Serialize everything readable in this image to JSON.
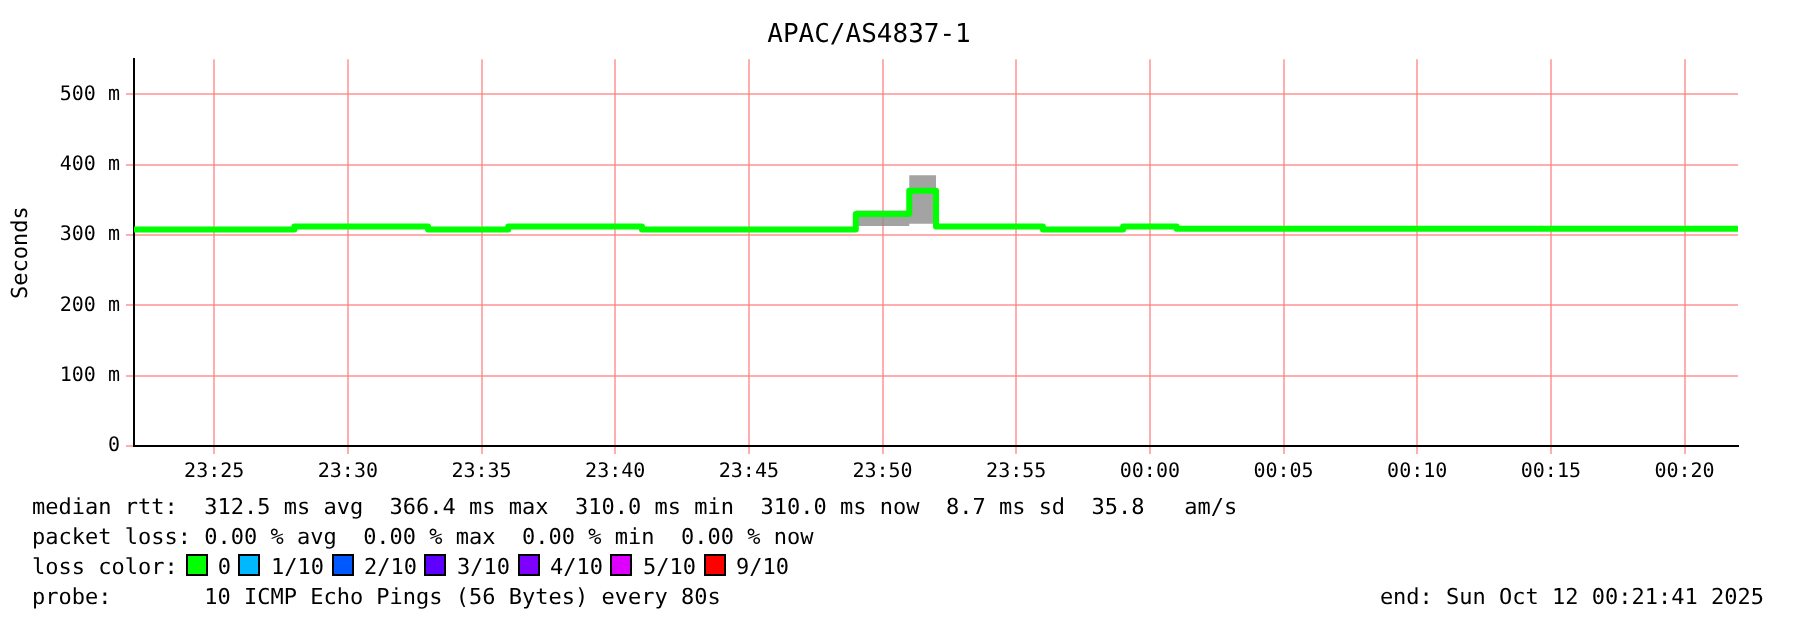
{
  "chart_data": {
    "type": "line",
    "title": "APAC/AS4837-1",
    "ylabel": "Seconds",
    "x": [
      "2025-10-11T23:22",
      "2025-10-11T23:28",
      "2025-10-11T23:28",
      "2025-10-11T23:33",
      "2025-10-11T23:33",
      "2025-10-11T23:36",
      "2025-10-11T23:36",
      "2025-10-11T23:41",
      "2025-10-11T23:41",
      "2025-10-11T23:49",
      "2025-10-11T23:49",
      "2025-10-11T23:51",
      "2025-10-11T23:51",
      "2025-10-11T23:52",
      "2025-10-11T23:52",
      "2025-10-11T23:56",
      "2025-10-11T23:56",
      "2025-10-11T23:59",
      "2025-10-11T23:59",
      "2025-10-12T00:01",
      "2025-10-12T00:01",
      "2025-10-12T00:22"
    ],
    "series": [
      {
        "color": "#00ff00",
        "values": [
          308,
          308,
          312,
          312,
          308,
          308,
          312,
          312,
          308,
          308,
          330,
          330,
          363,
          363,
          312,
          312,
          308,
          308,
          312,
          312,
          309,
          309
        ],
        "lower": [
          null,
          null,
          null,
          null,
          null,
          null,
          null,
          null,
          null,
          null,
          313,
          313,
          316,
          316,
          null,
          null,
          null,
          null,
          null,
          null,
          null,
          null
        ],
        "upper": [
          null,
          null,
          null,
          null,
          null,
          null,
          null,
          null,
          null,
          null,
          335,
          335,
          385,
          385,
          null,
          null,
          null,
          null,
          null,
          null,
          null,
          null
        ]
      }
    ],
    "xlim": [
      "2025-10-11T23:22",
      "2025-10-12T00:22"
    ],
    "xticks": [
      {
        "value": "2025-10-11T23:25",
        "label": "23:25"
      },
      {
        "value": "2025-10-11T23:30",
        "label": "23:30"
      },
      {
        "value": "2025-10-11T23:35",
        "label": "23:35"
      },
      {
        "value": "2025-10-11T23:40",
        "label": "23:40"
      },
      {
        "value": "2025-10-11T23:45",
        "label": "23:45"
      },
      {
        "value": "2025-10-11T23:50",
        "label": "23:50"
      },
      {
        "value": "2025-10-11T23:55",
        "label": "23:55"
      },
      {
        "value": "2025-10-12T00:00",
        "label": "00:00"
      },
      {
        "value": "2025-10-12T00:05",
        "label": "00:05"
      },
      {
        "value": "2025-10-12T00:10",
        "label": "00:10"
      },
      {
        "value": "2025-10-12T00:15",
        "label": "00:15"
      },
      {
        "value": "2025-10-12T00:20",
        "label": "00:20"
      }
    ],
    "ylim": [
      0,
      550
    ],
    "yticks": [
      0,
      {
        "value": 100,
        "label": "100 m"
      },
      {
        "value": 200,
        "label": "200 m"
      },
      {
        "value": 300,
        "label": "300 m"
      },
      {
        "value": 400,
        "label": "400 m"
      },
      {
        "value": 500,
        "label": "500 m"
      }
    ],
    "grid": true,
    "legend": false,
    "annotations": [
      "median rtt:  312.5 ms avg  366.4 ms max  310.0 ms min  310.0 ms now  8.7 ms sd  35.8   am/s",
      "packet loss: 0.00 % avg  0.00 % max  0.00 % min  0.00 % now",
      "loss color:",
      "0",
      "1/10",
      "2/10",
      "3/10",
      "4/10",
      "5/10",
      "9/10",
      "probe:       10 ICMP Echo Pings (56 Bytes) every 80s",
      "end: Sun Oct 12 00:21:41 2025"
    ]
  }
}
